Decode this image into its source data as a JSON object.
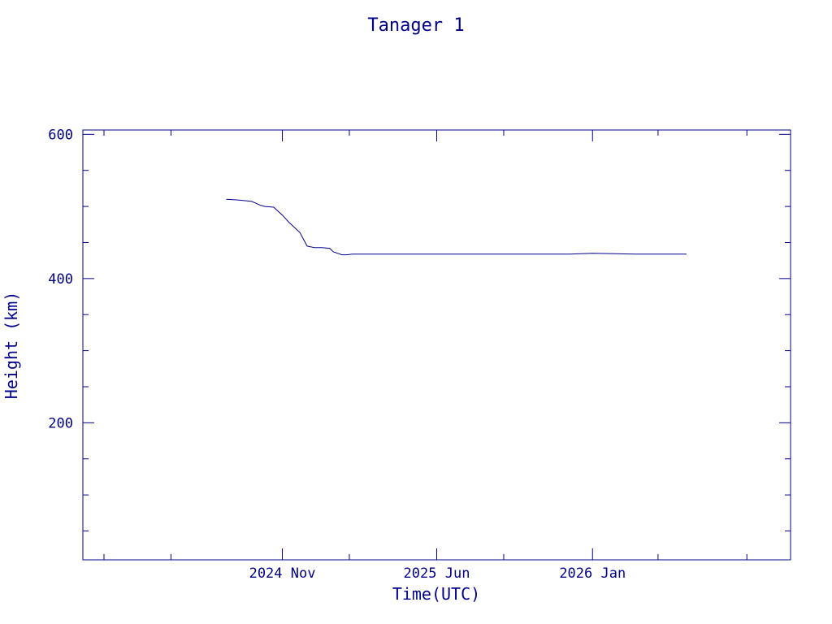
{
  "chart_data": {
    "type": "line",
    "title": "Tanager 1",
    "xlabel": "Time(UTC)",
    "ylabel": "Height (km)",
    "x_ticks": [
      "2024 Nov",
      "2025 Jun",
      "2026 Jan"
    ],
    "y_ticks": [
      200,
      400,
      600
    ],
    "ylim": [
      10,
      606
    ],
    "xlim": [
      "2024-02-01",
      "2026-09-30"
    ],
    "grid": false,
    "colors": {
      "axis": "#00008b",
      "line": "#00008b"
    },
    "series": [
      {
        "x": [
          "2024-08-16",
          "2024-09-01",
          "2024-09-20",
          "2024-10-01",
          "2024-10-08",
          "2024-10-20",
          "2024-11-01",
          "2024-11-10",
          "2024-11-25",
          "2024-12-05",
          "2024-12-15",
          "2024-12-25",
          "2025-01-05",
          "2025-01-10",
          "2025-01-22",
          "2025-01-28",
          "2025-02-05",
          "2025-03-01",
          "2025-06-01",
          "2025-09-01",
          "2025-12-01",
          "2026-01-01",
          "2026-03-01",
          "2026-05-10"
        ],
        "y": [
          510,
          509,
          507,
          502,
          500,
          499,
          488,
          478,
          464,
          445,
          443,
          443,
          442,
          437,
          433,
          433,
          434,
          434,
          434,
          434,
          434,
          435,
          434,
          434
        ]
      }
    ]
  }
}
